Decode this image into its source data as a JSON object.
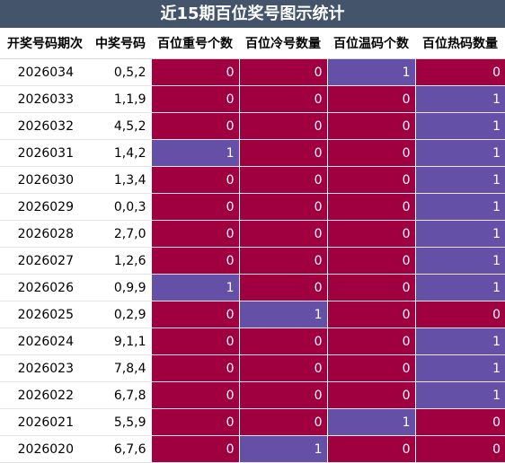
{
  "title": "近15期百位奖号图示统计",
  "columns": [
    "开奖号码期次",
    "中奖号码",
    "百位重号个数",
    "百位冷号数量",
    "百位温码个数",
    "百位热码数量"
  ],
  "colors": {
    "header_bg": "#44546a",
    "one_cell": "#6550a8",
    "zero_cell": "#a0003f"
  },
  "rows": [
    {
      "period": "2026034",
      "nums": "0,5,2",
      "values": [
        0,
        0,
        1,
        0
      ]
    },
    {
      "period": "2026033",
      "nums": "1,1,9",
      "values": [
        0,
        0,
        0,
        1
      ]
    },
    {
      "period": "2026032",
      "nums": "4,5,2",
      "values": [
        0,
        0,
        0,
        1
      ]
    },
    {
      "period": "2026031",
      "nums": "1,4,2",
      "values": [
        1,
        0,
        0,
        1
      ]
    },
    {
      "period": "2026030",
      "nums": "1,3,4",
      "values": [
        0,
        0,
        0,
        1
      ]
    },
    {
      "period": "2026029",
      "nums": "0,0,3",
      "values": [
        0,
        0,
        0,
        1
      ]
    },
    {
      "period": "2026028",
      "nums": "2,7,0",
      "values": [
        0,
        0,
        0,
        1
      ]
    },
    {
      "period": "2026027",
      "nums": "1,2,6",
      "values": [
        0,
        0,
        0,
        1
      ]
    },
    {
      "period": "2026026",
      "nums": "0,9,9",
      "values": [
        1,
        0,
        0,
        1
      ]
    },
    {
      "period": "2026025",
      "nums": "0,2,9",
      "values": [
        0,
        1,
        0,
        0
      ]
    },
    {
      "period": "2026024",
      "nums": "9,1,1",
      "values": [
        0,
        0,
        0,
        1
      ]
    },
    {
      "period": "2026023",
      "nums": "7,8,4",
      "values": [
        0,
        0,
        0,
        1
      ]
    },
    {
      "period": "2026022",
      "nums": "6,7,8",
      "values": [
        0,
        0,
        0,
        1
      ]
    },
    {
      "period": "2026021",
      "nums": "5,5,9",
      "values": [
        0,
        0,
        1,
        0
      ]
    },
    {
      "period": "2026020",
      "nums": "6,7,6",
      "values": [
        0,
        1,
        0,
        0
      ]
    }
  ]
}
